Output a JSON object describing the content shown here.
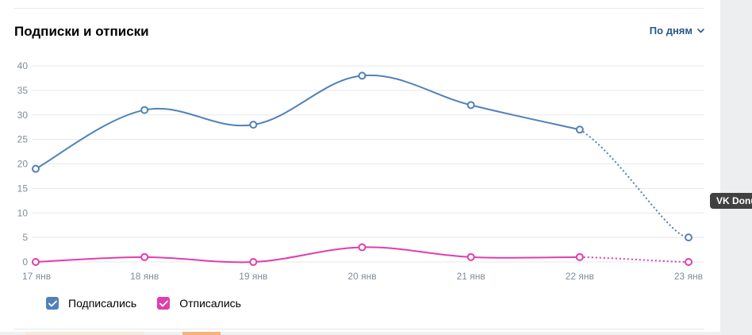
{
  "header": {
    "title": "Подписки и отписки",
    "period_label": "По дням"
  },
  "tooltip": {
    "label": "VK Donut"
  },
  "colors": {
    "subscribed": "#5181b8",
    "unsubscribed": "#e03ead",
    "grid": "#e7e8ec",
    "axis_text": "#818c99"
  },
  "chart_data": {
    "type": "line",
    "title": "Подписки и отписки",
    "xlabel": "",
    "ylabel": "",
    "categories": [
      "17 янв",
      "18 янв",
      "19 янв",
      "20 янв",
      "21 янв",
      "22 янв",
      "23 янв"
    ],
    "ylim": [
      0,
      40
    ],
    "yticks": [
      0,
      5,
      10,
      15,
      20,
      25,
      30,
      35,
      40
    ],
    "grid": true,
    "legend_position": "bottom-left",
    "series": [
      {
        "name": "Подписались",
        "values": [
          19,
          31,
          28,
          38,
          32,
          27,
          5
        ],
        "dotted_last_segment": true
      },
      {
        "name": "Отписались",
        "values": [
          0,
          1,
          0,
          3,
          1,
          1,
          0
        ],
        "dotted_last_segment": true
      }
    ]
  }
}
